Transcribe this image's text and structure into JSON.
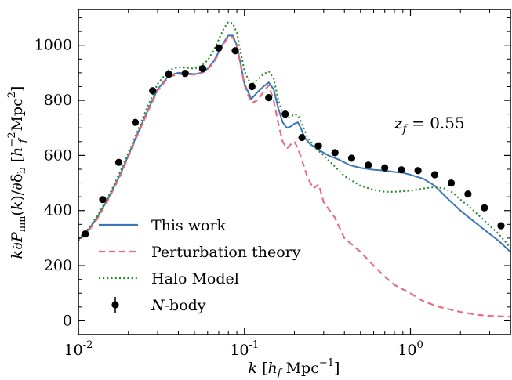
{
  "chart_data": {
    "type": "line",
    "xlabel": "k [h_f Mpc^-1]",
    "ylabel": "k∂P_nm(k)/∂δ_b [h_f^-2 Mpc^2]",
    "x_scale": "log",
    "xlim": [
      0.01,
      4.0
    ],
    "ylim": [
      -50,
      1130
    ],
    "x_ticks": [
      {
        "value": 0.01,
        "label": "10",
        "exp": "-2"
      },
      {
        "value": 0.1,
        "label": "10",
        "exp": "-1"
      },
      {
        "value": 1,
        "label": "10",
        "exp": "0"
      }
    ],
    "y_ticks": [
      0,
      200,
      400,
      600,
      800,
      1000
    ],
    "annotation": "z_f = 0.55",
    "legend_position": "lower-left",
    "series": [
      {
        "name": "This work",
        "style": "solid",
        "color": "#3b77b8",
        "x": [
          0.0095,
          0.011,
          0.013,
          0.015,
          0.018,
          0.022,
          0.026,
          0.03,
          0.035,
          0.04,
          0.045,
          0.05,
          0.055,
          0.06,
          0.065,
          0.07,
          0.075,
          0.08,
          0.085,
          0.09,
          0.095,
          0.1,
          0.11,
          0.12,
          0.13,
          0.14,
          0.15,
          0.16,
          0.17,
          0.18,
          0.19,
          0.2,
          0.21,
          0.22,
          0.23,
          0.25,
          0.28,
          0.32,
          0.37,
          0.43,
          0.5,
          0.6,
          0.7,
          0.8,
          0.9,
          1.0,
          1.2,
          1.4,
          1.6,
          1.8,
          2.0,
          2.3,
          2.6,
          3.0,
          3.4,
          4.0
        ],
        "y": [
          285,
          315,
          375,
          440,
          535,
          660,
          760,
          840,
          890,
          900,
          898,
          895,
          900,
          915,
          940,
          975,
          1010,
          1035,
          1035,
          1000,
          930,
          860,
          805,
          830,
          850,
          865,
          840,
          770,
          720,
          700,
          705,
          715,
          720,
          695,
          665,
          640,
          620,
          600,
          585,
          565,
          555,
          548,
          545,
          540,
          537,
          530,
          515,
          490,
          455,
          425,
          400,
          370,
          345,
          315,
          290,
          250
        ]
      },
      {
        "name": "Perturbation theory",
        "style": "dashed",
        "color": "#ea6a7a",
        "x": [
          0.0095,
          0.011,
          0.013,
          0.015,
          0.018,
          0.022,
          0.026,
          0.03,
          0.035,
          0.04,
          0.045,
          0.05,
          0.055,
          0.06,
          0.065,
          0.07,
          0.075,
          0.08,
          0.085,
          0.09,
          0.095,
          0.1,
          0.11,
          0.12,
          0.13,
          0.14,
          0.15,
          0.16,
          0.17,
          0.18,
          0.19,
          0.2,
          0.21,
          0.22,
          0.24,
          0.26,
          0.28,
          0.3,
          0.35,
          0.4,
          0.5,
          0.6,
          0.7,
          0.8,
          1.0,
          1.2,
          1.5,
          2.0,
          2.5,
          3.0,
          4.0
        ],
        "y": [
          280,
          310,
          370,
          435,
          530,
          655,
          755,
          835,
          885,
          895,
          895,
          893,
          898,
          912,
          935,
          970,
          1005,
          1030,
          1030,
          995,
          925,
          855,
          790,
          800,
          830,
          855,
          800,
          715,
          650,
          625,
          640,
          650,
          625,
          590,
          520,
          480,
          495,
          430,
          375,
          300,
          250,
          200,
          160,
          130,
          100,
          70,
          50,
          32,
          22,
          18,
          15
        ]
      },
      {
        "name": "Halo Model",
        "style": "dotted",
        "color": "#2a8a2a",
        "x": [
          0.0095,
          0.011,
          0.013,
          0.015,
          0.018,
          0.022,
          0.026,
          0.03,
          0.035,
          0.04,
          0.045,
          0.05,
          0.055,
          0.06,
          0.065,
          0.07,
          0.075,
          0.08,
          0.085,
          0.09,
          0.095,
          0.1,
          0.11,
          0.12,
          0.13,
          0.14,
          0.15,
          0.16,
          0.17,
          0.18,
          0.19,
          0.2,
          0.21,
          0.22,
          0.24,
          0.27,
          0.3,
          0.35,
          0.4,
          0.5,
          0.6,
          0.7,
          0.8,
          1.0,
          1.2,
          1.4,
          1.6,
          1.8,
          2.0,
          2.3,
          2.6,
          3.0,
          3.4,
          4.0
        ],
        "y": [
          290,
          320,
          380,
          445,
          545,
          670,
          775,
          860,
          910,
          920,
          918,
          915,
          925,
          945,
          980,
          1020,
          1060,
          1085,
          1080,
          1045,
          975,
          905,
          855,
          875,
          895,
          905,
          880,
          800,
          750,
          735,
          740,
          750,
          745,
          720,
          665,
          625,
          600,
          560,
          525,
          490,
          475,
          468,
          468,
          472,
          480,
          485,
          480,
          465,
          440,
          410,
          380,
          345,
          315,
          265
        ]
      },
      {
        "name": "N-body",
        "style": "points",
        "color": "#000000",
        "x": [
          0.011,
          0.014,
          0.0175,
          0.022,
          0.028,
          0.035,
          0.044,
          0.056,
          0.07,
          0.088,
          0.111,
          0.14,
          0.176,
          0.222,
          0.279,
          0.351,
          0.442,
          0.557,
          0.7,
          0.882,
          1.11,
          1.4,
          1.76,
          2.22,
          2.79,
          3.51
        ],
        "y": [
          315,
          440,
          575,
          720,
          835,
          895,
          898,
          915,
          990,
          980,
          850,
          810,
          750,
          665,
          635,
          610,
          590,
          565,
          555,
          548,
          545,
          530,
          500,
          460,
          410,
          345
        ]
      }
    ]
  }
}
